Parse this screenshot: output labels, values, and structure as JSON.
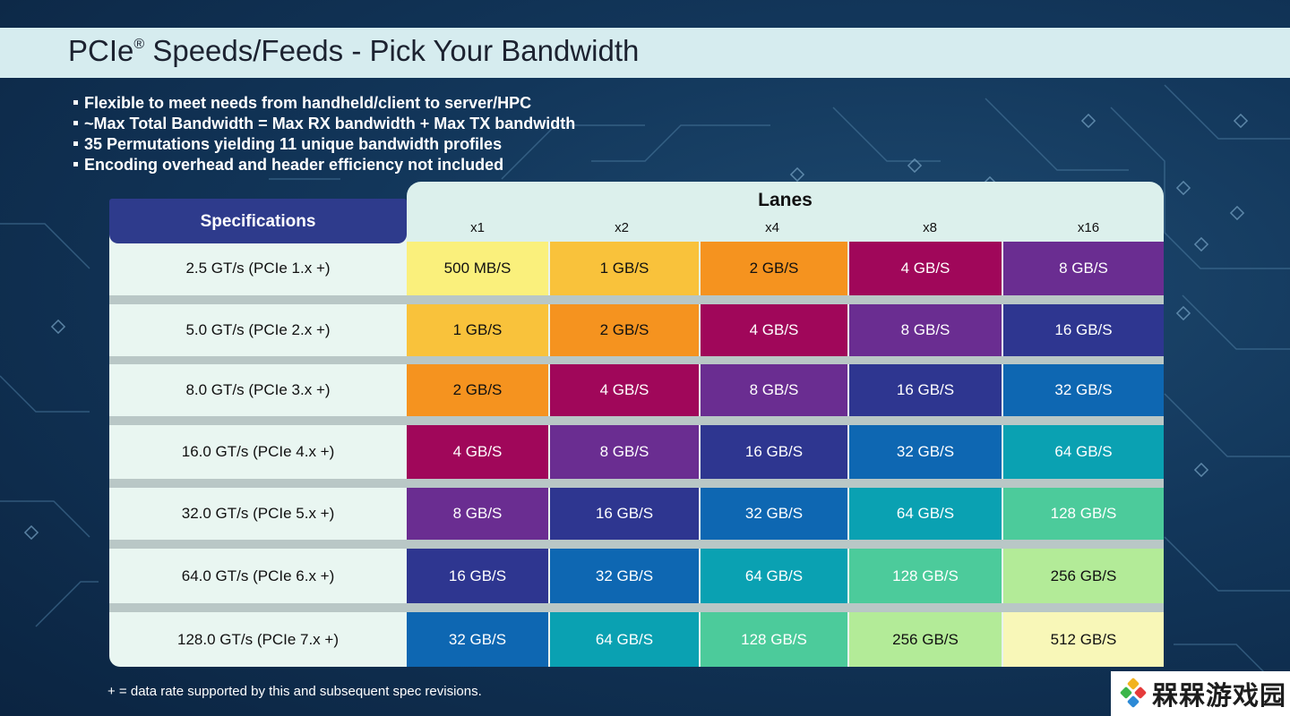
{
  "slide": {
    "title": "PCIe",
    "title_mark": "®",
    "title_rest": " Speeds/Feeds - Pick Your Bandwidth",
    "bullets": [
      "Flexible to meet needs from handheld/client to server/HPC",
      "~Max Total Bandwidth = Max RX bandwidth + Max TX bandwidth",
      "35 Permutations yielding 11 unique bandwidth profiles",
      "Encoding overhead and header efficiency not included"
    ],
    "footnote": "+ = data rate supported by this and subsequent spec revisions."
  },
  "table": {
    "spec_header": "Specifications",
    "lanes_header": "Lanes",
    "lanes": [
      "x1",
      "x2",
      "x4",
      "x8",
      "x16"
    ],
    "rows": [
      {
        "spec": "2.5 GT/s (PCIe 1.x +)",
        "values": [
          "500 MB/S",
          "1 GB/S",
          "2 GB/S",
          "4 GB/S",
          "8 GB/S"
        ]
      },
      {
        "spec": "5.0 GT/s (PCIe 2.x +)",
        "values": [
          "1 GB/S",
          "2 GB/S",
          "4 GB/S",
          "8 GB/S",
          "16 GB/S"
        ]
      },
      {
        "spec": "8.0 GT/s (PCIe 3.x +)",
        "values": [
          "2 GB/S",
          "4 GB/S",
          "8 GB/S",
          "16 GB/S",
          "32 GB/S"
        ]
      },
      {
        "spec": "16.0 GT/s (PCIe 4.x +)",
        "values": [
          "4 GB/S",
          "8 GB/S",
          "16 GB/S",
          "32 GB/S",
          "64 GB/S"
        ]
      },
      {
        "spec": "32.0 GT/s (PCIe 5.x +)",
        "values": [
          "8 GB/S",
          "16 GB/S",
          "32 GB/S",
          "64 GB/S",
          "128 GB/S"
        ]
      },
      {
        "spec": "64.0 GT/s (PCIe 6.x +)",
        "values": [
          "16 GB/S",
          "32 GB/S",
          "64 GB/S",
          "128 GB/S",
          "256 GB/S"
        ]
      },
      {
        "spec": "128.0 GT/s (PCIe 7.x +)",
        "values": [
          "32 GB/S",
          "64 GB/S",
          "128 GB/S",
          "256 GB/S",
          "512 GB/S"
        ]
      }
    ],
    "bandwidth_colors": [
      {
        "bw": "500 MB/S",
        "bg": "#faf07c",
        "fg": "#111111"
      },
      {
        "bw": "1 GB/S",
        "bg": "#f9c23b",
        "fg": "#111111"
      },
      {
        "bw": "2 GB/S",
        "bg": "#f5931f",
        "fg": "#111111"
      },
      {
        "bw": "4 GB/S",
        "bg": "#a0075a",
        "fg": "#ffffff"
      },
      {
        "bw": "8 GB/S",
        "bg": "#6a2d91",
        "fg": "#ffffff"
      },
      {
        "bw": "16 GB/S",
        "bg": "#2e3690",
        "fg": "#ffffff"
      },
      {
        "bw": "32 GB/S",
        "bg": "#0e67b2",
        "fg": "#ffffff"
      },
      {
        "bw": "64 GB/S",
        "bg": "#0aa1b2",
        "fg": "#ffffff"
      },
      {
        "bw": "128 GB/S",
        "bg": "#4ccb9b",
        "fg": "#ffffff"
      },
      {
        "bw": "256 GB/S",
        "bg": "#b3eb98",
        "fg": "#111111"
      },
      {
        "bw": "512 GB/S",
        "bg": "#f8f7b8",
        "fg": "#111111"
      }
    ]
  },
  "watermark": {
    "text": "槑槑游戏园",
    "icon": "colorful-logo-icon"
  }
}
